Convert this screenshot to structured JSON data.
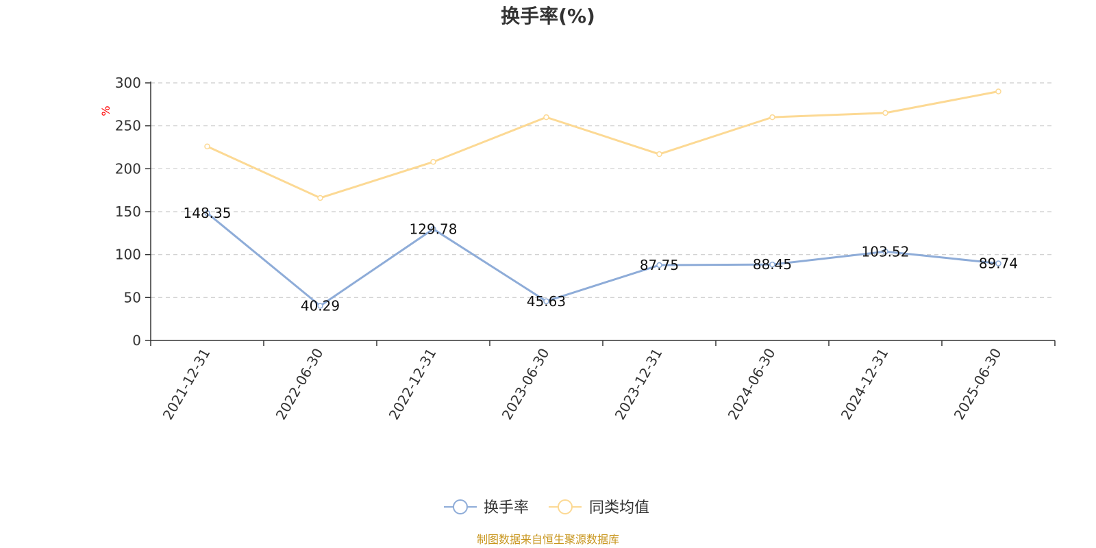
{
  "chart_data": {
    "type": "line",
    "title": "换手率(%)",
    "ylabel": "%",
    "categories": [
      "2021-12-31",
      "2022-06-30",
      "2022-12-31",
      "2023-06-30",
      "2023-12-31",
      "2024-06-30",
      "2024-12-31",
      "2025-06-30"
    ],
    "ylim": [
      0,
      300
    ],
    "yticks": [
      "0",
      "50",
      "100",
      "150",
      "200",
      "250",
      "300"
    ],
    "grid": true,
    "legend_position": "bottom-center",
    "series": [
      {
        "name": "换手率",
        "color": "#8eacd8",
        "values": [
          148.35,
          40.29,
          129.78,
          45.63,
          87.75,
          88.45,
          103.52,
          89.74
        ],
        "labels": [
          "148.35",
          "40.29",
          "129.78",
          "45.63",
          "87.75",
          "88.45",
          "103.52",
          "89.74"
        ]
      },
      {
        "name": "同类均值",
        "color": "#fcd994",
        "values": [
          226,
          166,
          208,
          260,
          217,
          260,
          265,
          290
        ]
      }
    ]
  },
  "footer": {
    "source": "制图数据来自恒生聚源数据库"
  }
}
